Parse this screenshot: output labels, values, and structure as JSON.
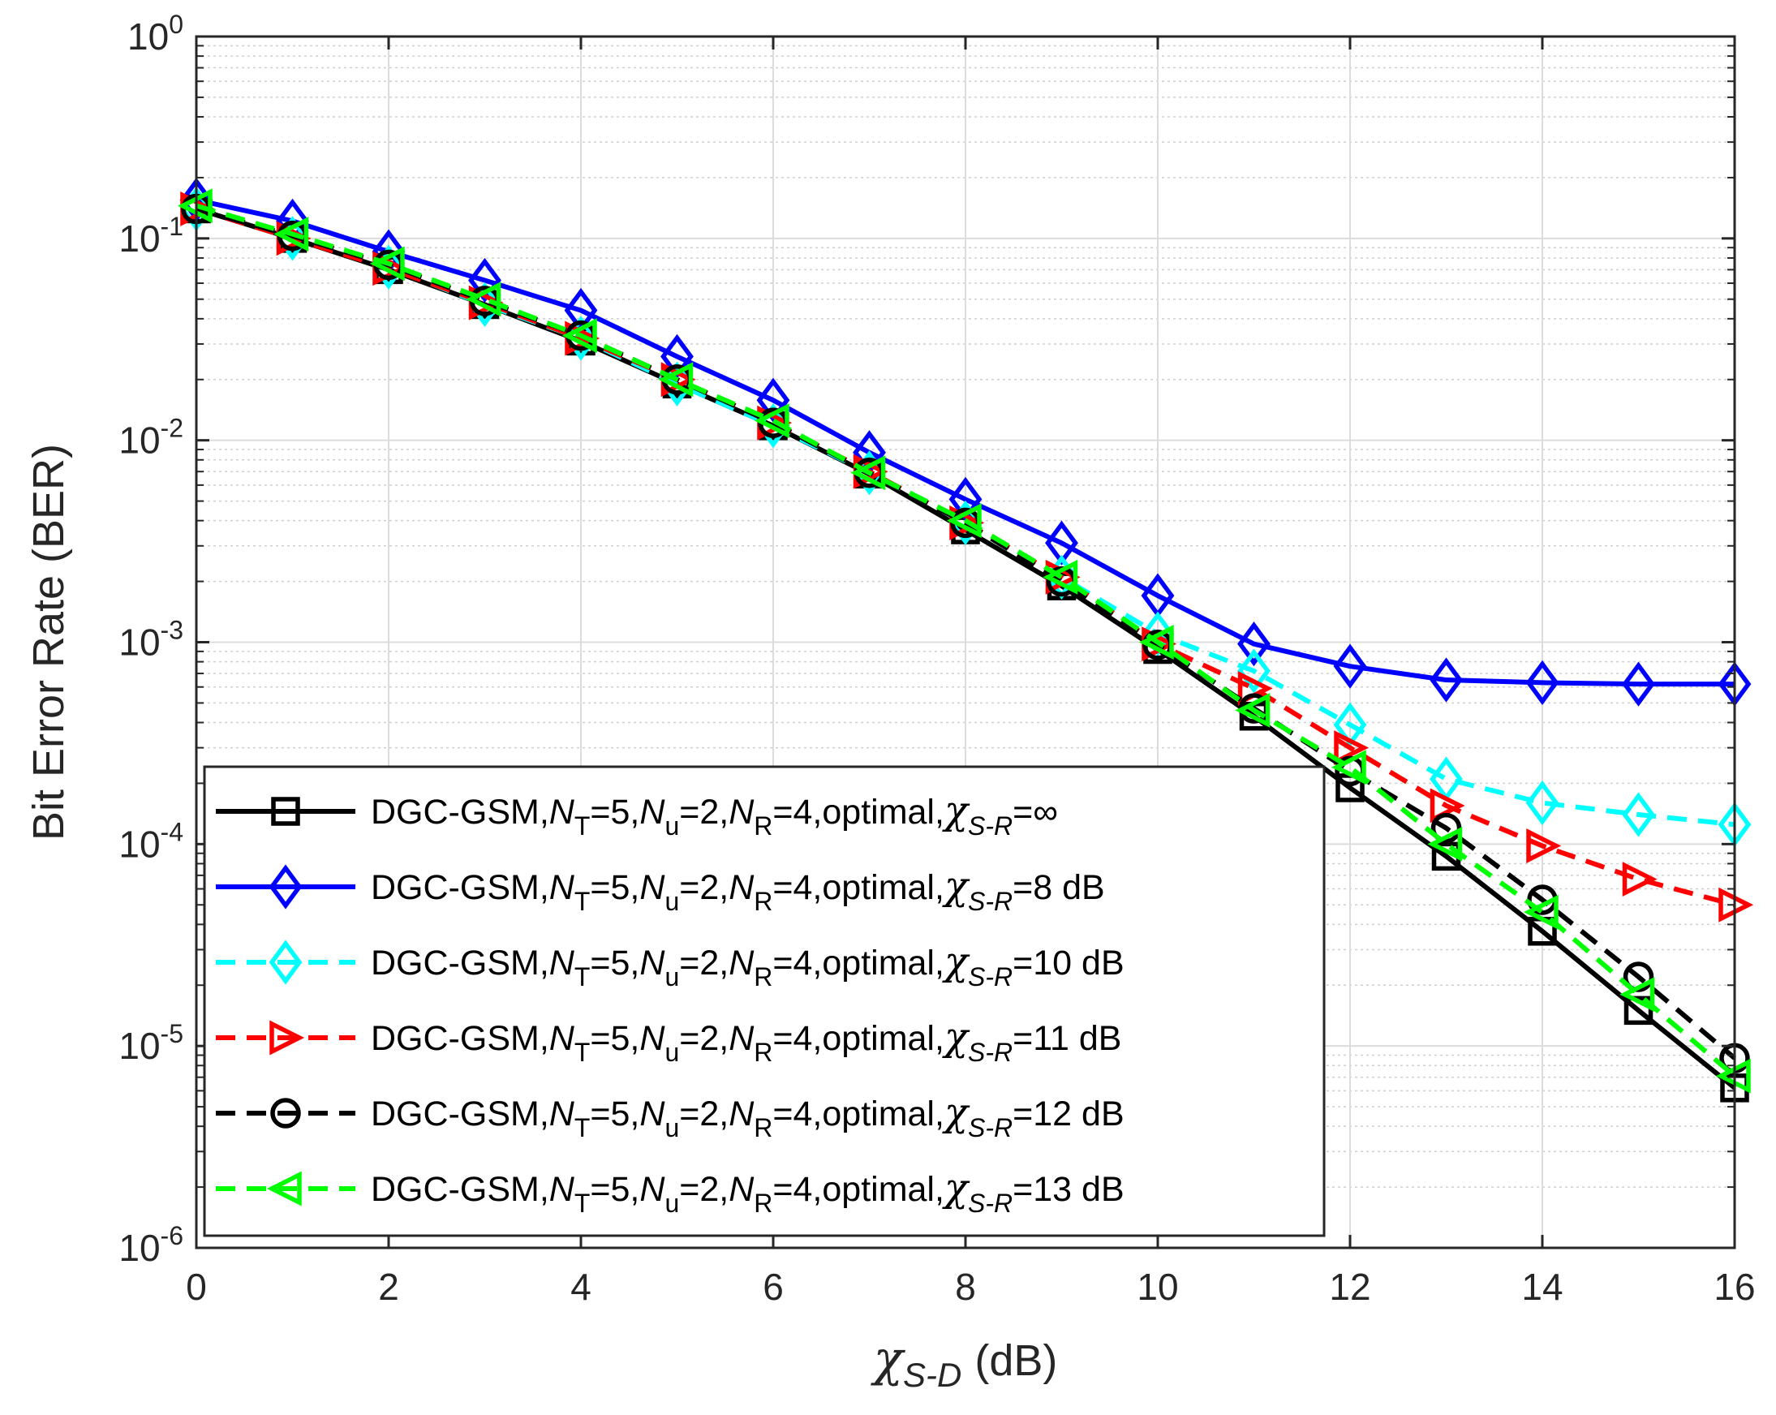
{
  "chart_data": {
    "type": "line",
    "title": "",
    "xlabel": {
      "symbol": "χ",
      "subscript": "S-D",
      "unit": "(dB)"
    },
    "ylabel": "Bit Error Rate (BER)",
    "xlim": [
      0,
      16
    ],
    "ylim": [
      1e-06,
      1
    ],
    "yscale": "log",
    "grid": true,
    "legend_position": "bottom-left",
    "x_ticks": [
      "0",
      "2",
      "4",
      "6",
      "8",
      "10",
      "12",
      "14",
      "16"
    ],
    "y_ticks": [
      {
        "base": "10",
        "exp": "-6"
      },
      {
        "base": "10",
        "exp": "-5"
      },
      {
        "base": "10",
        "exp": "-4"
      },
      {
        "base": "10",
        "exp": "-3"
      },
      {
        "base": "10",
        "exp": "-2"
      },
      {
        "base": "10",
        "exp": "-1"
      },
      {
        "base": "10",
        "exp": "0"
      }
    ],
    "x": [
      0,
      1,
      2,
      3,
      4,
      5,
      6,
      7,
      8,
      9,
      10,
      11,
      12,
      13,
      14,
      15,
      16
    ],
    "series": [
      {
        "name": "DGC-GSM,N_T=5,N_u=2,N_R=4,optimal,χ_S-R=∞",
        "legend_suffix": "=∞",
        "color": "#000000",
        "dash": "solid",
        "marker": "square",
        "values": [
          0.14,
          0.1,
          0.07,
          0.047,
          0.031,
          0.019,
          0.0118,
          0.0068,
          0.0036,
          0.0019,
          0.00092,
          0.00043,
          0.00019,
          8.7e-05,
          3.7e-05,
          1.5e-05,
          6.2e-06
        ]
      },
      {
        "name": "DGC-GSM,N_T=5,N_u=2,N_R=4,optimal,χ_S-R=8 dB",
        "legend_suffix": "=8 dB",
        "color": "#0000ff",
        "dash": "solid",
        "marker": "diamond",
        "values": [
          0.155,
          0.122,
          0.086,
          0.062,
          0.044,
          0.026,
          0.0158,
          0.0087,
          0.0051,
          0.0031,
          0.0017,
          0.00098,
          0.00076,
          0.00065,
          0.00063,
          0.00062,
          0.00062
        ]
      },
      {
        "name": "DGC-GSM,N_T=5,N_u=2,N_R=4,optimal,χ_S-R=10 dB",
        "legend_suffix": "=10 dB",
        "color": "#00ffff",
        "dash": "dashed",
        "marker": "diamond",
        "values": [
          0.14,
          0.1,
          0.072,
          0.047,
          0.032,
          0.019,
          0.0118,
          0.0069,
          0.0039,
          0.0021,
          0.0011,
          0.00072,
          0.00039,
          0.00021,
          0.00016,
          0.00014,
          0.000125
        ]
      },
      {
        "name": "DGC-GSM,N_T=5,N_u=2,N_R=4,optimal,χ_S-R=11 dB",
        "legend_suffix": "=11 dB",
        "color": "#ff0000",
        "dash": "dashed",
        "marker": "triangle-right",
        "values": [
          0.14,
          0.1,
          0.071,
          0.048,
          0.032,
          0.02,
          0.0122,
          0.007,
          0.0039,
          0.0021,
          0.00098,
          0.00059,
          0.0003,
          0.000155,
          9.8e-05,
          6.7e-05,
          5e-05
        ]
      },
      {
        "name": "DGC-GSM,N_T=5,N_u=2,N_R=4,optimal,χ_S-R=12 dB",
        "legend_suffix": "=12 dB",
        "color": "#000000",
        "dash": "dashed",
        "marker": "circle",
        "values": [
          0.14,
          0.103,
          0.074,
          0.049,
          0.033,
          0.02,
          0.0122,
          0.0069,
          0.0039,
          0.002,
          0.00097,
          0.00047,
          0.00023,
          0.00012,
          5.3e-05,
          2.2e-05,
          8.7e-06
        ]
      },
      {
        "name": "DGC-GSM,N_T=5,N_u=2,N_R=4,optimal,χ_S-R=13 dB",
        "legend_suffix": "=13 dB",
        "color": "#00ff00",
        "dash": "dashed",
        "marker": "triangle-left",
        "values": [
          0.145,
          0.105,
          0.075,
          0.05,
          0.033,
          0.02,
          0.0125,
          0.0069,
          0.004,
          0.0021,
          0.001,
          0.00046,
          0.00024,
          0.0001,
          4.6e-05,
          1.8e-05,
          7.1e-06
        ]
      }
    ],
    "legend_text": {
      "prefix": "DGC-GSM,",
      "nt_sym": "N",
      "nt_sub": "T",
      "nt_val": "=5,",
      "nu_sym": "N",
      "nu_sub": "u",
      "nu_val": "=2,",
      "nr_sym": "N",
      "nr_sub": "R",
      "nr_val": "=4,optimal,",
      "chi_sym": "χ",
      "chi_sub": "S-R"
    }
  }
}
